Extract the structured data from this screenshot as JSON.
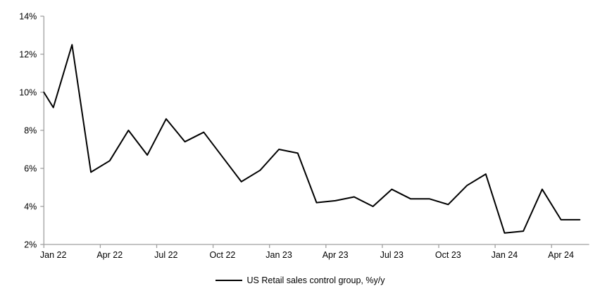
{
  "chart_data": {
    "type": "line",
    "title": "",
    "xlabel": "",
    "ylabel": "",
    "x": [
      "Jan 22",
      "Feb 22",
      "Mar 22",
      "Apr 22",
      "May 22",
      "Jun 22",
      "Jul 22",
      "Aug 22",
      "Sep 22",
      "Oct 22",
      "Nov 22",
      "Dec 22",
      "Jan 23",
      "Feb 23",
      "Mar 23",
      "Apr 23",
      "May 23",
      "Jun 23",
      "Jul 23",
      "Aug 23",
      "Sep 23",
      "Oct 23",
      "Nov 23",
      "Dec 23",
      "Jan 24",
      "Feb 24",
      "Mar 24",
      "Apr 24",
      "May 24"
    ],
    "series": [
      {
        "name": "US Retail sales control group, %y/y",
        "color": "#000000",
        "values": [
          9.2,
          12.5,
          5.8,
          6.4,
          8.0,
          6.7,
          8.6,
          7.4,
          7.9,
          6.6,
          5.3,
          5.9,
          7.0,
          6.8,
          4.2,
          4.3,
          4.5,
          4.0,
          4.9,
          4.4,
          4.4,
          4.1,
          5.1,
          5.7,
          2.6,
          2.7,
          4.9,
          3.3,
          3.3
        ]
      }
    ],
    "line_enters_plot_at_left_edge_value": 10.0,
    "ylim": [
      2,
      14
    ],
    "y_tick_step": 2,
    "y_tick_labels": [
      "2%",
      "4%",
      "6%",
      "8%",
      "10%",
      "12%",
      "14%"
    ],
    "x_tick_labels": [
      "Jan 22",
      "Apr 22",
      "Jul 22",
      "Oct 22",
      "Jan 23",
      "Apr 23",
      "Jul 23",
      "Oct 23",
      "Jan 24",
      "Apr 24"
    ],
    "x_tick_label_every_n_months": 3,
    "grid": "off",
    "legend_position": "bottom-center",
    "axis_color": "#a0a0a0",
    "tick_color": "#a0a0a0",
    "label_color": "#000000",
    "background_color": "#ffffff"
  },
  "legend": {
    "label": "US Retail sales control group, %y/y"
  }
}
